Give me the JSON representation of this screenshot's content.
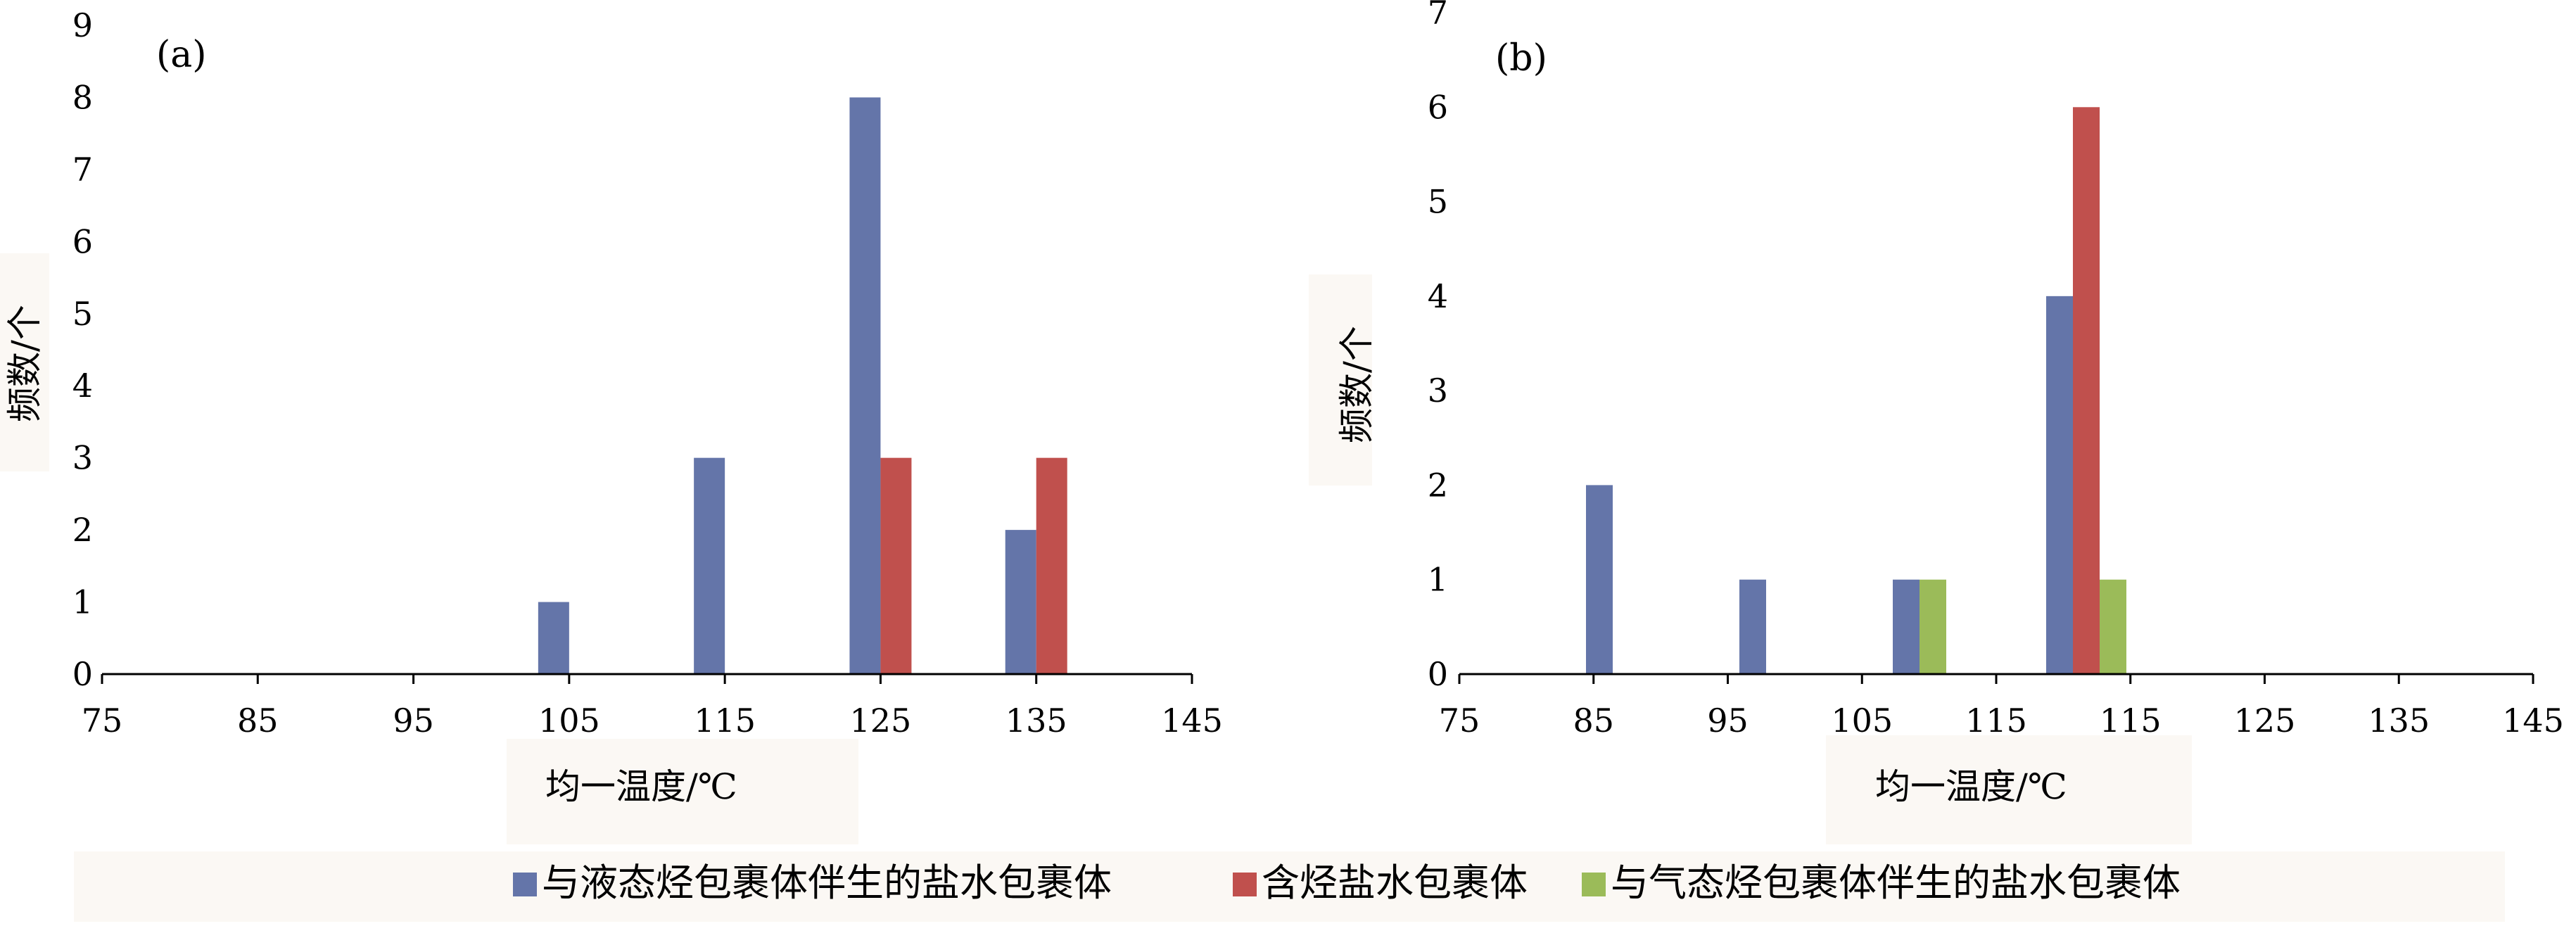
{
  "chart_data": [
    {
      "type": "bar",
      "panel_label": "(a)",
      "xlabel": "均一温度/℃",
      "ylabel": "频数/个",
      "x_ticks": [
        "75",
        "85",
        "95",
        "105",
        "115",
        "125",
        "135",
        "145"
      ],
      "y_ticks": [
        "0",
        "1",
        "2",
        "3",
        "4",
        "5",
        "6",
        "7",
        "8",
        "9"
      ],
      "xlim": [
        75,
        145
      ],
      "ylim": [
        0,
        9
      ],
      "grid": false,
      "series": [
        {
          "name": "与液态烃包裹体伴生的盐水包裹体",
          "color": "#6475a9",
          "x": [
            105,
            115,
            125,
            135
          ],
          "values": [
            1,
            3,
            8,
            2
          ]
        },
        {
          "name": "含烃盐水包裹体",
          "color": "#c0504d",
          "x": [
            125,
            135
          ],
          "values": [
            3,
            3
          ]
        }
      ]
    },
    {
      "type": "bar",
      "panel_label": "(b)",
      "xlabel": "均一温度/℃",
      "ylabel": "频数/个",
      "x_ticks": [
        "75",
        "85",
        "95",
        "105",
        "115",
        "115",
        "125",
        "135",
        "145"
      ],
      "y_ticks": [
        "0",
        "1",
        "2",
        "3",
        "4",
        "5",
        "6",
        "7"
      ],
      "xlim": [
        75,
        145
      ],
      "ylim": [
        0,
        7
      ],
      "grid": false,
      "series": [
        {
          "name": "与液态烃包裹体伴生的盐水包裹体",
          "color": "#6475a9",
          "x": [
            85,
            95,
            105,
            115
          ],
          "values": [
            2,
            1,
            1,
            4
          ]
        },
        {
          "name": "含烃盐水包裹体",
          "color": "#c0504d",
          "x": [
            115
          ],
          "values": [
            6
          ]
        },
        {
          "name": "与气态烃包裹体伴生的盐水包裹体",
          "color": "#9bbb59",
          "x": [
            105,
            115
          ],
          "values": [
            1,
            1
          ]
        }
      ]
    }
  ],
  "legend": {
    "placement": "bottom",
    "items": [
      {
        "label": "与液态烃包裹体伴生的盐水包裹体",
        "color": "#6475a9"
      },
      {
        "label": "含烃盐水包裹体",
        "color": "#c0504d"
      },
      {
        "label": "与气态烃包裹体伴生的盐水包裹体",
        "color": "#9bbb59"
      }
    ]
  }
}
